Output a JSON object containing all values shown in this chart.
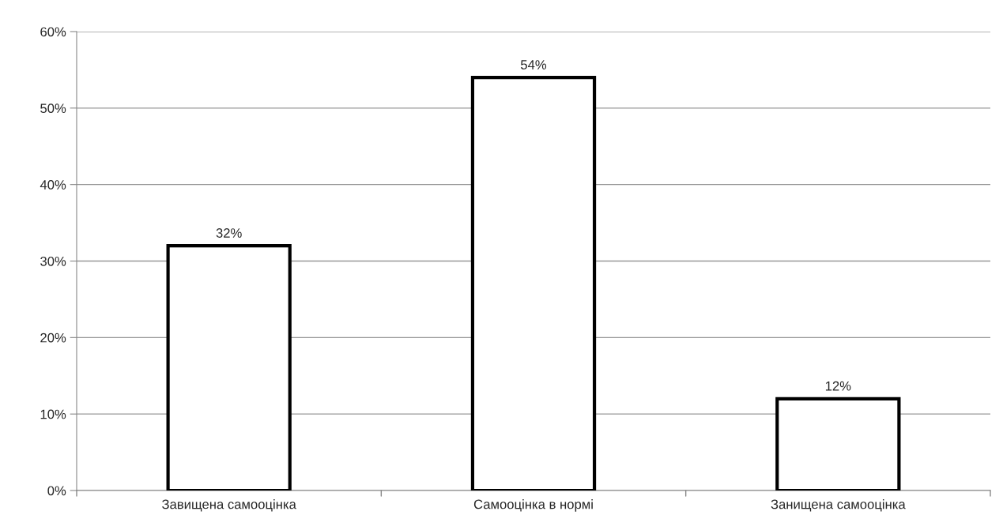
{
  "chart_data": {
    "type": "bar",
    "categories": [
      "Завищена самооцінка",
      "Самооцінка в нормі",
      "Занищена самооцінка"
    ],
    "values": [
      32,
      54,
      12
    ],
    "value_labels": [
      "32%",
      "54%",
      "12%"
    ],
    "color": "#ffffff",
    "ylim": [
      0,
      60
    ],
    "yticks": [
      {
        "value": 0,
        "label": "0%"
      },
      {
        "value": 10,
        "label": "10%"
      },
      {
        "value": 20,
        "label": "20%"
      },
      {
        "value": 30,
        "label": "30%"
      },
      {
        "value": 40,
        "label": "40%"
      },
      {
        "value": 50,
        "label": "50%"
      },
      {
        "value": 60,
        "label": "60%"
      }
    ],
    "grid": "y",
    "legend": false
  }
}
